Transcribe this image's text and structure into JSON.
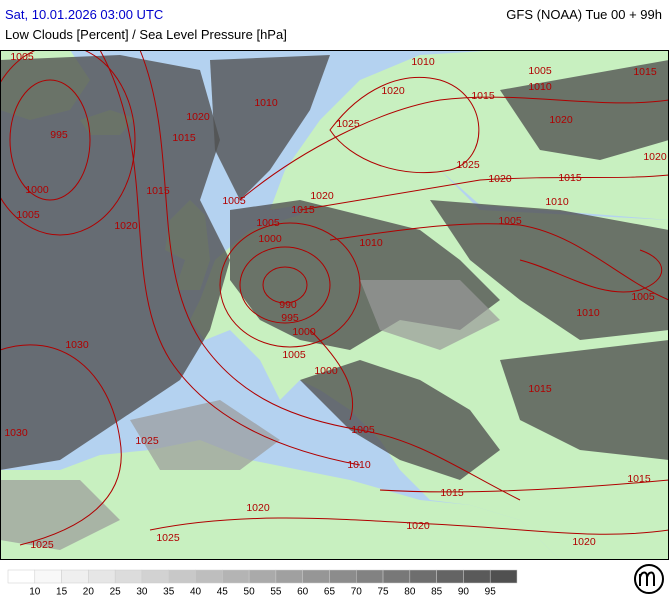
{
  "header": {
    "datetime": "Sat, 10.01.2026 03:00 UTC",
    "model": "GFS (NOAA) Tue 00 + 99h",
    "subtitle": "Low Clouds [Percent] / Sea Level Pressure [hPa]"
  },
  "isobar_labels": [
    1005,
    1010,
    1005,
    1015,
    1010,
    1020,
    1015,
    1010,
    1020,
    1025,
    995,
    1015,
    1020,
    1020,
    1025,
    1000,
    1015,
    1020,
    1020,
    1015,
    1005,
    1010,
    1015,
    1005,
    1005,
    1005,
    1020,
    1000,
    1010,
    990,
    995,
    1000,
    1005,
    1010,
    1005,
    1030,
    1000,
    1015,
    1030,
    1025,
    1005,
    1010,
    1015,
    1015,
    1020,
    1020,
    1020,
    1025,
    1025
  ],
  "legend": {
    "ticks": [
      10,
      15,
      20,
      25,
      30,
      35,
      40,
      45,
      50,
      55,
      60,
      65,
      70,
      75,
      80,
      85,
      90,
      95
    ],
    "colors": [
      "#ffffff",
      "#f8f8f8",
      "#efefef",
      "#e6e6e6",
      "#dcdcdc",
      "#d2d2d2",
      "#c8c8c8",
      "#bebebe",
      "#b4b4b4",
      "#aaaaaa",
      "#a0a0a0",
      "#969696",
      "#8c8c8c",
      "#828282",
      "#787878",
      "#6e6e6e",
      "#646464",
      "#5a5a5a",
      "#505050"
    ]
  }
}
